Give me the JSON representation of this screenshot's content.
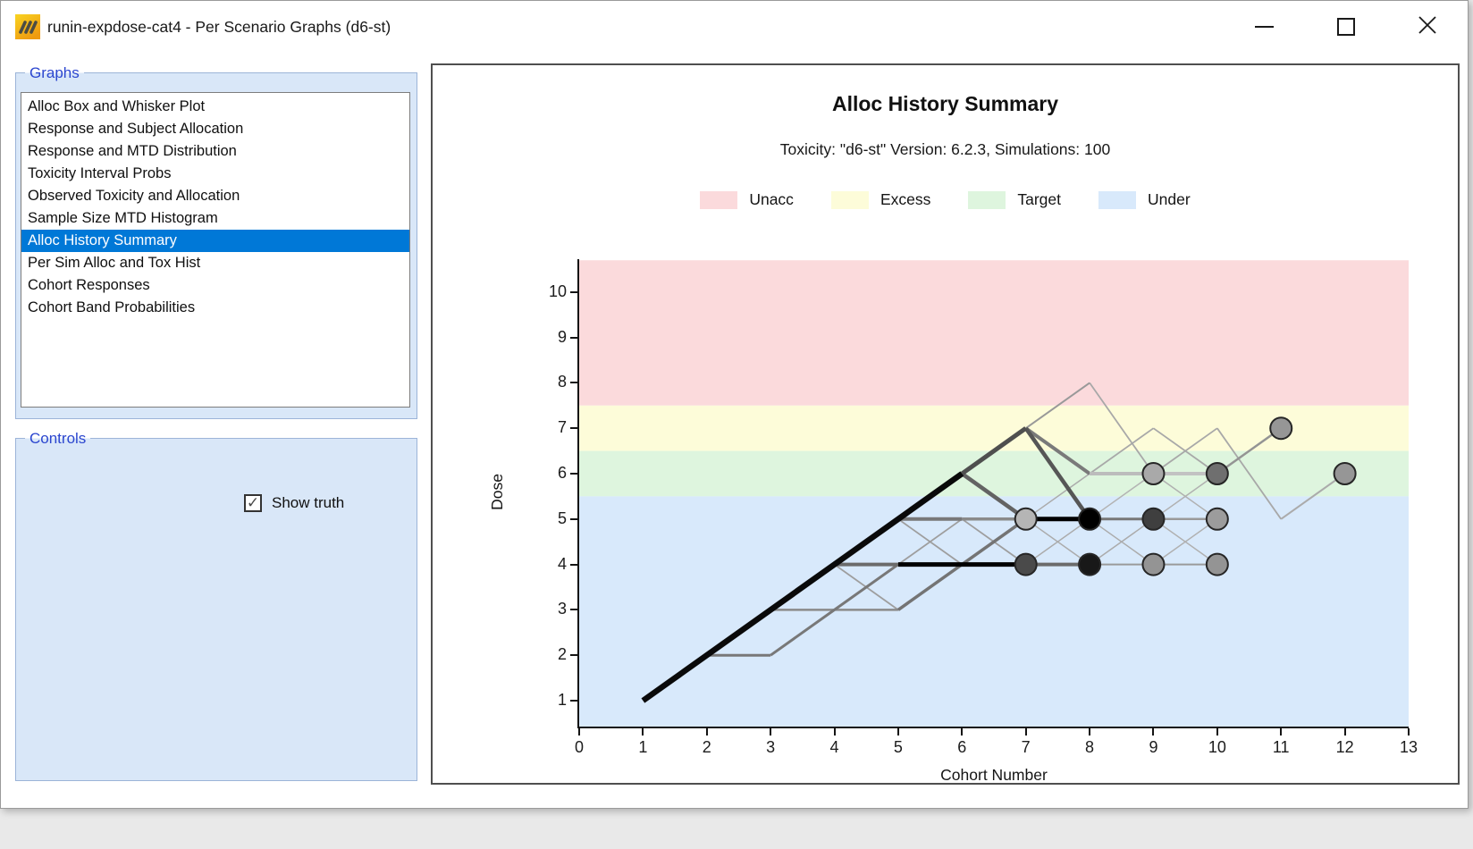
{
  "window": {
    "title": "runin-expdose-cat4 - Per Scenario Graphs (d6-st)",
    "controls": [
      "minimize",
      "maximize",
      "close"
    ]
  },
  "sidebar": {
    "graphs_group": {
      "label": "Graphs",
      "items": [
        "Alloc Box and Whisker Plot",
        "Response and Subject Allocation",
        "Response and MTD Distribution",
        "Toxicity Interval Probs",
        "Observed Toxicity and Allocation",
        "Sample Size MTD Histogram",
        "Alloc History Summary",
        "Per Sim Alloc and Tox Hist",
        "Cohort Responses",
        "Cohort Band Probabilities"
      ],
      "selected_index": 6,
      "selected_bg": "#0078d7"
    },
    "controls_group": {
      "label": "Controls",
      "checkbox": {
        "label": "Show truth",
        "checked": true
      }
    }
  },
  "chart_data": {
    "type": "line",
    "title": "Alloc History Summary",
    "subtitle": "Toxicity: \"d6-st\" Version: 6.2.3, Simulations: 100",
    "xlabel": "Cohort Number",
    "ylabel": "Dose",
    "xlim": [
      0,
      13
    ],
    "ylim": [
      0.4,
      10.7
    ],
    "x_ticks": [
      0,
      1,
      2,
      3,
      4,
      5,
      6,
      7,
      8,
      9,
      10,
      11,
      12,
      13
    ],
    "y_ticks": [
      1,
      2,
      3,
      4,
      5,
      6,
      7,
      8,
      9,
      10
    ],
    "legend_position": "top",
    "bands": [
      {
        "label": "Unacc",
        "dose_range": [
          7.5,
          10.7
        ],
        "color": "#fbdadc"
      },
      {
        "label": "Excess",
        "dose_range": [
          6.5,
          7.5
        ],
        "color": "#fdfcd9"
      },
      {
        "label": "Target",
        "dose_range": [
          5.5,
          6.5
        ],
        "color": "#def5de"
      },
      {
        "label": "Under",
        "dose_range": [
          0.4,
          5.5
        ],
        "color": "#d8e9fb"
      }
    ],
    "segments": [
      {
        "a": [
          1,
          1
        ],
        "b": [
          6,
          6
        ],
        "w": 6.5,
        "col": "#0a0a0a"
      },
      {
        "a": [
          2,
          2
        ],
        "b": [
          3,
          2
        ],
        "w": 3,
        "col": "#787878"
      },
      {
        "a": [
          3,
          2
        ],
        "b": [
          4,
          3
        ],
        "w": 3,
        "col": "#787878"
      },
      {
        "a": [
          4,
          3
        ],
        "b": [
          5,
          4
        ],
        "w": 3,
        "col": "#787878"
      },
      {
        "a": [
          3,
          3
        ],
        "b": [
          5,
          3
        ],
        "w": 2.5,
        "col": "#8a8a8a"
      },
      {
        "a": [
          5,
          3
        ],
        "b": [
          6,
          4
        ],
        "w": 3.5,
        "col": "#747474"
      },
      {
        "a": [
          6,
          4
        ],
        "b": [
          7,
          5
        ],
        "w": 3.5,
        "col": "#747474"
      },
      {
        "a": [
          4,
          4
        ],
        "b": [
          5,
          4
        ],
        "w": 4,
        "col": "#6b6b6b"
      },
      {
        "a": [
          5,
          4
        ],
        "b": [
          7,
          4
        ],
        "w": 5,
        "col": "#000000"
      },
      {
        "a": [
          7,
          4
        ],
        "b": [
          8,
          4
        ],
        "w": 4,
        "col": "#6b6b6b"
      },
      {
        "a": [
          8,
          4
        ],
        "b": [
          9,
          4
        ],
        "w": 2,
        "col": "#9a9a9a"
      },
      {
        "a": [
          9,
          4
        ],
        "b": [
          10,
          4
        ],
        "w": 2,
        "col": "#9a9a9a"
      },
      {
        "a": [
          5,
          5
        ],
        "b": [
          6,
          5
        ],
        "w": 4,
        "col": "#787878"
      },
      {
        "a": [
          6,
          5
        ],
        "b": [
          7,
          5
        ],
        "w": 3.5,
        "col": "#8a8a8a"
      },
      {
        "a": [
          7,
          5
        ],
        "b": [
          8,
          5
        ],
        "w": 5,
        "col": "#000000"
      },
      {
        "a": [
          8,
          5
        ],
        "b": [
          9,
          5
        ],
        "w": 3,
        "col": "#787878"
      },
      {
        "a": [
          9,
          5
        ],
        "b": [
          10,
          5
        ],
        "w": 2.5,
        "col": "#9a9a9a"
      },
      {
        "a": [
          6,
          6
        ],
        "b": [
          7,
          7
        ],
        "w": 5,
        "col": "#4f4f4f"
      },
      {
        "a": [
          6,
          6
        ],
        "b": [
          7,
          5
        ],
        "w": 4.5,
        "col": "#636363"
      },
      {
        "a": [
          7,
          7
        ],
        "b": [
          8,
          5
        ],
        "w": 4.5,
        "col": "#565656"
      },
      {
        "a": [
          7,
          7
        ],
        "b": [
          8,
          6
        ],
        "w": 4,
        "col": "#7a7a7a"
      },
      {
        "a": [
          8,
          6
        ],
        "b": [
          9,
          6
        ],
        "w": 4,
        "col": "#bcbcbc"
      },
      {
        "a": [
          9,
          6
        ],
        "b": [
          10,
          6
        ],
        "w": 4,
        "col": "#c2c2c2"
      },
      {
        "a": [
          10,
          6
        ],
        "b": [
          11,
          7
        ],
        "w": 2.5,
        "col": "#949494"
      },
      {
        "a": [
          7,
          7
        ],
        "b": [
          8,
          8
        ],
        "w": 2,
        "col": "#999999"
      },
      {
        "a": [
          8,
          8
        ],
        "b": [
          9,
          6
        ],
        "w": 1.8,
        "col": "#a8a8a8"
      },
      {
        "a": [
          8,
          6
        ],
        "b": [
          9,
          7
        ],
        "w": 1.8,
        "col": "#a8a8a8"
      },
      {
        "a": [
          9,
          7
        ],
        "b": [
          10,
          6
        ],
        "w": 1.8,
        "col": "#a8a8a8"
      },
      {
        "a": [
          9,
          6
        ],
        "b": [
          10,
          7
        ],
        "w": 1.8,
        "col": "#a8a8a8"
      },
      {
        "a": [
          10,
          7
        ],
        "b": [
          11,
          5
        ],
        "w": 1.8,
        "col": "#a8a8a8"
      },
      {
        "a": [
          11,
          5
        ],
        "b": [
          12,
          6
        ],
        "w": 2,
        "col": "#ababab"
      },
      {
        "a": [
          4,
          4
        ],
        "b": [
          5,
          3
        ],
        "w": 1.8,
        "col": "#9e9e9e"
      },
      {
        "a": [
          5,
          5
        ],
        "b": [
          6,
          4
        ],
        "w": 1.8,
        "col": "#9e9e9e"
      },
      {
        "a": [
          5,
          4
        ],
        "b": [
          6,
          5
        ],
        "w": 1.8,
        "col": "#9e9e9e"
      },
      {
        "a": [
          6,
          5
        ],
        "b": [
          7,
          4
        ],
        "w": 1.8,
        "col": "#9e9e9e"
      },
      {
        "a": [
          7,
          4
        ],
        "b": [
          8,
          5
        ],
        "w": 1.5,
        "col": "#ababab"
      },
      {
        "a": [
          7,
          5
        ],
        "b": [
          8,
          4
        ],
        "w": 1.5,
        "col": "#ababab"
      },
      {
        "a": [
          7,
          5
        ],
        "b": [
          8,
          6
        ],
        "w": 1.5,
        "col": "#ababab"
      },
      {
        "a": [
          8,
          5
        ],
        "b": [
          9,
          4
        ],
        "w": 1.5,
        "col": "#ababab"
      },
      {
        "a": [
          8,
          5
        ],
        "b": [
          9,
          6
        ],
        "w": 1.5,
        "col": "#b3b3b3"
      },
      {
        "a": [
          8,
          4
        ],
        "b": [
          9,
          5
        ],
        "w": 1.5,
        "col": "#ababab"
      },
      {
        "a": [
          9,
          5
        ],
        "b": [
          10,
          6
        ],
        "w": 1.5,
        "col": "#b0b0b0"
      },
      {
        "a": [
          9,
          6
        ],
        "b": [
          10,
          5
        ],
        "w": 1.5,
        "col": "#b0b0b0"
      },
      {
        "a": [
          9,
          5
        ],
        "b": [
          10,
          4
        ],
        "w": 1.5,
        "col": "#b0b0b0"
      },
      {
        "a": [
          9,
          4
        ],
        "b": [
          10,
          5
        ],
        "w": 1.5,
        "col": "#b0b0b0"
      }
    ],
    "markers": [
      {
        "at": [
          7,
          5
        ],
        "fill": "#b5b5b5"
      },
      {
        "at": [
          7,
          4
        ],
        "fill": "#4a4a4a"
      },
      {
        "at": [
          8,
          5
        ],
        "fill": "#000000"
      },
      {
        "at": [
          8,
          4
        ],
        "fill": "#181818"
      },
      {
        "at": [
          9,
          6
        ],
        "fill": "#a9a9a9"
      },
      {
        "at": [
          10,
          6
        ],
        "fill": "#6f6f6f"
      },
      {
        "at": [
          9,
          5
        ],
        "fill": "#3f3f3f"
      },
      {
        "at": [
          10,
          5
        ],
        "fill": "#9c9c9c"
      },
      {
        "at": [
          9,
          4
        ],
        "fill": "#949494"
      },
      {
        "at": [
          10,
          4
        ],
        "fill": "#949494"
      },
      {
        "at": [
          11,
          7
        ],
        "fill": "#969696"
      },
      {
        "at": [
          12,
          6
        ],
        "fill": "#969696"
      }
    ],
    "marker_radius": 12,
    "marker_stroke": "#262626"
  }
}
